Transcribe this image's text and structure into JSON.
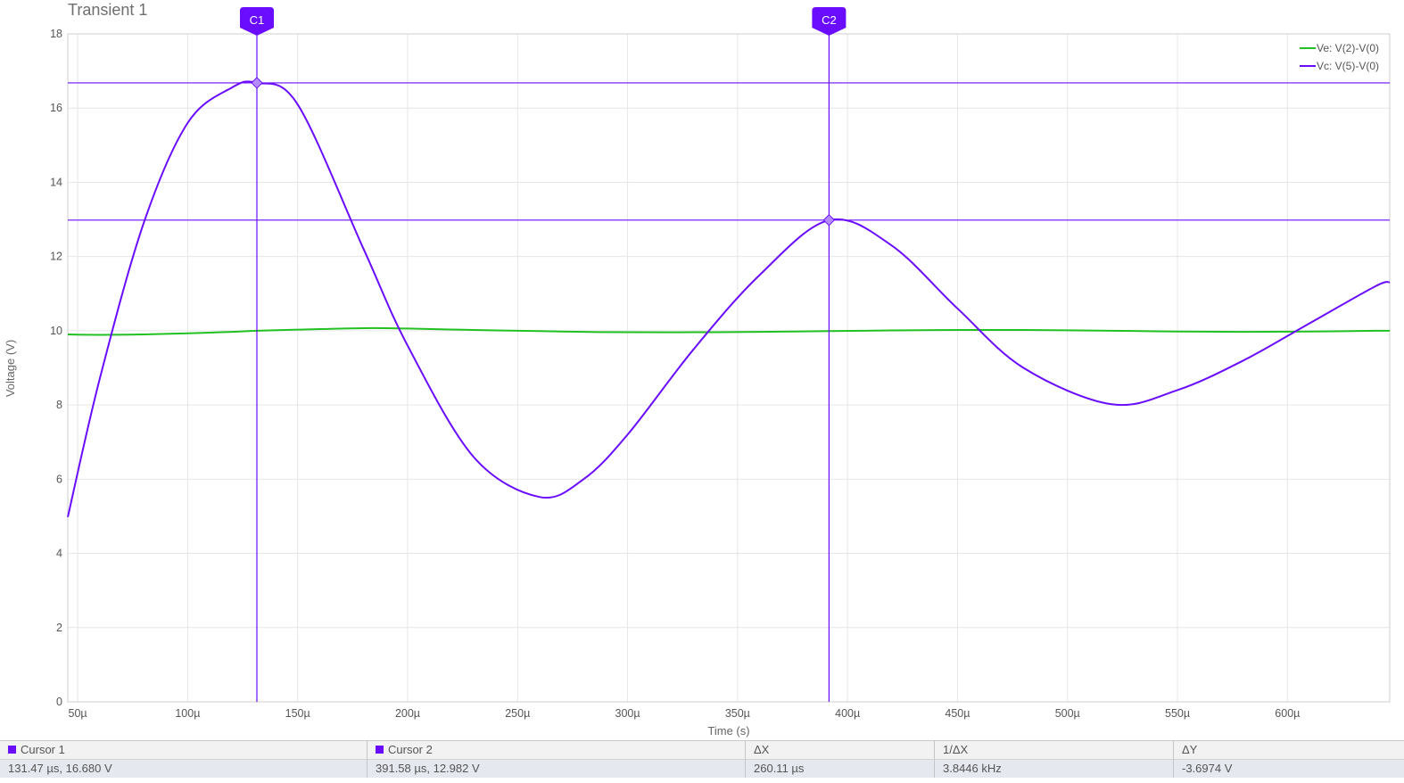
{
  "chart_data": {
    "type": "line",
    "title": "Transient 1",
    "xlabel": "Time (s)",
    "ylabel": "Voltage (V)",
    "xlim": [
      4.55e-05,
      0.0006465
    ],
    "ylim": [
      0,
      18
    ],
    "x_ticks": [
      {
        "value": 5e-05,
        "label": "50µ"
      },
      {
        "value": 0.0001,
        "label": "100µ"
      },
      {
        "value": 0.00015,
        "label": "150µ"
      },
      {
        "value": 0.0002,
        "label": "200µ"
      },
      {
        "value": 0.00025,
        "label": "250µ"
      },
      {
        "value": 0.0003,
        "label": "300µ"
      },
      {
        "value": 0.00035,
        "label": "350µ"
      },
      {
        "value": 0.0004,
        "label": "400µ"
      },
      {
        "value": 0.00045,
        "label": "450µ"
      },
      {
        "value": 0.0005,
        "label": "500µ"
      },
      {
        "value": 0.00055,
        "label": "550µ"
      },
      {
        "value": 0.0006,
        "label": "600µ"
      }
    ],
    "y_ticks": [
      0,
      2,
      4,
      6,
      8,
      10,
      12,
      14,
      16,
      18
    ],
    "grid": true,
    "legend_position": "top-right",
    "x": [
      4.55e-05,
      6e-05,
      8e-05,
      0.0001,
      0.00012,
      0.00013147,
      0.00015,
      0.00018,
      0.0002,
      0.00023,
      0.00026,
      0.00028,
      0.0003,
      0.00033,
      0.00036,
      0.00039158,
      0.00042,
      0.00045,
      0.00048,
      0.00052,
      0.00055,
      0.00058,
      0.00061,
      0.00064,
      0.0006465
    ],
    "series": [
      {
        "name": "Ve: V(2)-V(0)",
        "color": "#22c122",
        "values": [
          9.9,
          9.89,
          9.9,
          9.93,
          9.97,
          10.0,
          10.03,
          10.07,
          10.06,
          10.02,
          9.99,
          9.97,
          9.96,
          9.96,
          9.97,
          9.99,
          10.01,
          10.02,
          10.02,
          10.0,
          9.98,
          9.97,
          9.98,
          10.0,
          10.0
        ]
      },
      {
        "name": "Vc: V(5)-V(0)",
        "color": "#6a0dff",
        "values": [
          4.98,
          8.7,
          12.9,
          15.6,
          16.55,
          16.68,
          16.1,
          12.2,
          9.6,
          6.6,
          5.52,
          6.0,
          7.2,
          9.5,
          11.5,
          12.98,
          12.3,
          10.6,
          9.0,
          8.02,
          8.4,
          9.2,
          10.2,
          11.2,
          11.31
        ]
      }
    ],
    "cursors": [
      {
        "label": "C1",
        "x": 0.00013147,
        "y": 16.68,
        "color": "#6a0dff"
      },
      {
        "label": "C2",
        "x": 0.00039158,
        "y": 12.982,
        "color": "#6a0dff"
      }
    ]
  },
  "cursor_table": {
    "headers": {
      "cursor1": "Cursor 1",
      "cursor2": "Cursor 2",
      "dx": "ΔX",
      "inv_dx": "1/ΔX",
      "dy": "ΔY"
    },
    "values": {
      "cursor1": "131.47 µs, 16.680 V",
      "cursor2": "391.58 µs, 12.982 V",
      "dx": "260.11 µs",
      "inv_dx": "3.8446 kHz",
      "dy": "-3.6974 V"
    },
    "cursor_color": "#6a0dff"
  }
}
